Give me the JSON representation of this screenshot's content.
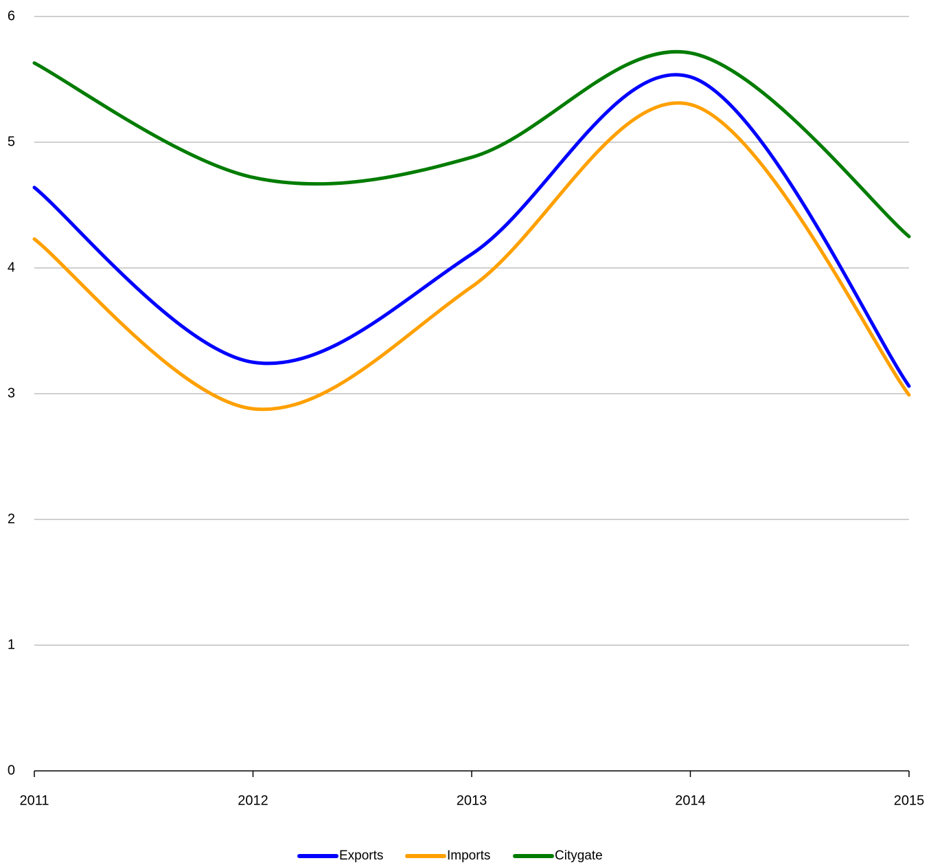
{
  "chart_data": {
    "type": "line",
    "categories": [
      "2011",
      "2012",
      "2013",
      "2014",
      "2015"
    ],
    "series": [
      {
        "name": "Exports",
        "color": "#0000ff",
        "values": [
          4.64,
          3.25,
          4.11,
          5.52,
          3.06
        ]
      },
      {
        "name": "Imports",
        "color": "#ffa000",
        "values": [
          4.23,
          2.88,
          3.85,
          5.3,
          2.99
        ]
      },
      {
        "name": "Citygate",
        "color": "#007c00",
        "values": [
          5.63,
          4.72,
          4.88,
          5.71,
          4.25
        ]
      }
    ],
    "ylim": [
      0,
      6
    ],
    "yticks": [
      0,
      1,
      2,
      3,
      4,
      5,
      6
    ],
    "grid": true,
    "smooth": true,
    "legend": "bottom"
  }
}
